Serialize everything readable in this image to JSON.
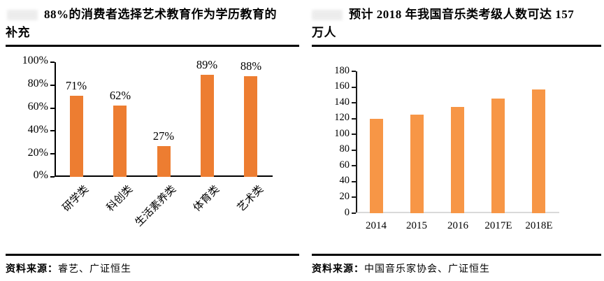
{
  "left_chart": {
    "title_line1": "88%的消费者选择艺术教育作为学历教育的",
    "title_line2": "补充",
    "source_label": "资料来源：",
    "source_text": "睿艺、广证恒生"
  },
  "right_chart": {
    "title_line1": "预计 2018 年我国音乐类考级人数可达 157",
    "title_line2": "万人",
    "source_label": "资料来源：",
    "source_text": "中国音乐家协会、广证恒生"
  },
  "chart_data": [
    {
      "type": "bar",
      "title": "88%的消费者选择艺术教育作为学历教育的补充",
      "categories": [
        "研学类",
        "科创类",
        "生活素养类",
        "体育类",
        "艺术类"
      ],
      "values": [
        71,
        62,
        27,
        89,
        88
      ],
      "value_labels": [
        "71%",
        "62%",
        "27%",
        "89%",
        "88%"
      ],
      "xlabel": "",
      "ylabel": "",
      "ylim": [
        0,
        100
      ],
      "ytick_step": 20,
      "ytick_labels": [
        "0%",
        "20%",
        "40%",
        "60%",
        "80%",
        "100%"
      ],
      "bar_color": "#ED7D31",
      "grid": false,
      "legend_position": "none"
    },
    {
      "type": "bar",
      "title": "预计 2018 年我国音乐类考级人数可达 157 万人",
      "categories": [
        "2014",
        "2015",
        "2016",
        "2017E",
        "2018E"
      ],
      "values": [
        120,
        125,
        135,
        145,
        157
      ],
      "xlabel": "",
      "ylabel": "",
      "ylim": [
        0,
        180
      ],
      "ytick_step": 20,
      "ytick_labels": [
        "0",
        "20",
        "40",
        "60",
        "80",
        "100",
        "120",
        "140",
        "160",
        "180"
      ],
      "bar_color": "#F79646",
      "grid": false,
      "legend_position": "none"
    }
  ]
}
